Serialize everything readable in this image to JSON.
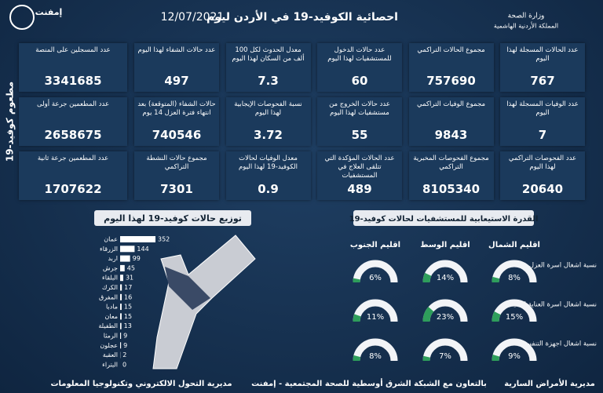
{
  "header": {
    "title": "احصائية الكوفيد-19 في الأردن ليوم",
    "date": "12/07/2021",
    "ministry": "وزارة الصحة",
    "kingdom": "المملكة الأردنية الهاشمية",
    "logo": "إمفنت"
  },
  "stats": [
    {
      "label": "عدد الحالات المسجلة لهذا اليوم",
      "value": 767
    },
    {
      "label": "مجموع الحالات التراكمي",
      "value": 757690
    },
    {
      "label": "عدد حالات الدخول للمستشفيات لهذا اليوم",
      "value": 60
    },
    {
      "label": "معدل الحدوث لكل 100 ألف من السكان لهذا اليوم",
      "value": 7.3
    },
    {
      "label": "عدد حالات الشفاء لهذا اليوم",
      "value": 497
    },
    {
      "label": "عدد الوفيات المسجلة لهذا اليوم",
      "value": 7
    },
    {
      "label": "مجموع الوفيات التراكمي",
      "value": 9843
    },
    {
      "label": "عدد حالات الخروج من مستشفيات لهذا اليوم",
      "value": 55
    },
    {
      "label": "نسبة الفحوصات الإيجابية لهذا اليوم",
      "value": 3.72
    },
    {
      "label": "حالات الشفاء (المتوقعة) بعد انتهاء فترة العزل 14 يوم",
      "value": 740546
    },
    {
      "label": "عدد الفحوصات التراكمي لهذا اليوم",
      "value": 20640
    },
    {
      "label": "مجموع الفحوصات المخبرية التراكمي",
      "value": 8105340
    },
    {
      "label": "عدد الحالات المؤكدة التي تتلقى العلاج في المستشفيات",
      "value": 489
    },
    {
      "label": "معدل الوفيات لحالات الكوفيد-19 لهذا اليوم",
      "value": 0.9
    },
    {
      "label": "مجموع حالات النشطة التراكمي",
      "value": 7301
    }
  ],
  "vaccine": {
    "title": "مطعوم كوفيد-19",
    "items": [
      {
        "label": "عدد المسجلين على المنصة",
        "value": 3341685
      },
      {
        "label": "عدد المطعمين جرعة أولى",
        "value": 2658675
      },
      {
        "label": "عدد المطعمين جرعة ثانية",
        "value": 1707622
      }
    ]
  },
  "distribution": {
    "title": "توزيع حالات كوفيد-19 لهذا اليوم",
    "categories": [
      "عمان",
      "الزرقاء",
      "اربد",
      "جرش",
      "البلقاء",
      "الكرك",
      "المفرق",
      "مادبا",
      "معان",
      "الطفيلة",
      "الرمثا",
      "عجلون",
      "العقبة",
      "البتراء"
    ],
    "values": [
      352,
      144,
      99,
      45,
      31,
      17,
      16,
      15,
      15,
      13,
      9,
      9,
      2,
      0
    ],
    "color": "#ffffff"
  },
  "capacity": {
    "title": "القدرة الاستيعابية للمستشفيات لحالات كوفيد-19",
    "regions": [
      "اقليم الشمال",
      "اقليم الوسط",
      "اقليم الجنوب"
    ],
    "color": "#2e9e5b",
    "rows": [
      {
        "label": "نسبة اشغال اسرة العزل",
        "values": [
          8,
          14,
          6
        ],
        "value_labels": [
          "8%",
          "14%",
          "6%"
        ]
      },
      {
        "label": "نسبة اشغال اسرة العناية الحثيثة",
        "values": [
          15,
          23,
          11
        ],
        "value_labels": [
          "15%",
          "23%",
          "11%"
        ]
      },
      {
        "label": "نسبة اشغال اجهزة التنفس",
        "values": [
          9,
          7,
          8
        ],
        "value_labels": [
          "9%",
          "7%",
          "8%"
        ]
      }
    ]
  },
  "footer": {
    "right": "مديرية الأمراض السارية",
    "center": "بالتعاون مع الشبكة الشرق أوسطية للصحة المجتمعية - إمفنت",
    "left": "مديرية التحول الالكتروني وتكنولوجيا المعلومات"
  }
}
